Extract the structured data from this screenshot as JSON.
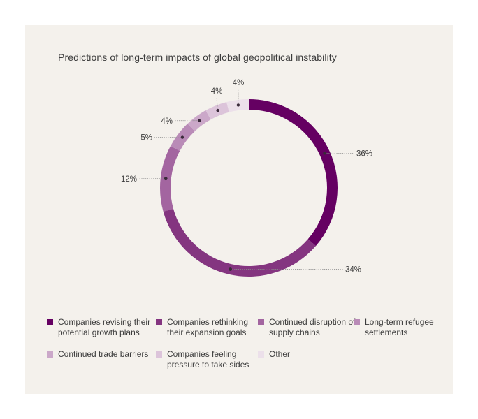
{
  "chart_data": {
    "type": "pie",
    "variant": "donut",
    "title": "Predictions of long-term impacts of global geopolitical instability",
    "slices": [
      {
        "label": "Companies revising their potential growth plans",
        "value": 36,
        "value_label": "36%",
        "color": "#650062"
      },
      {
        "label": "Companies rethinking their expansion goals",
        "value": 34,
        "value_label": "34%",
        "color": "#843580"
      },
      {
        "label": "Continued disruption of supply chains",
        "value": 12,
        "value_label": "12%",
        "color": "#a365a0"
      },
      {
        "label": "Long-term refugee settlements",
        "value": 5,
        "value_label": "5%",
        "color": "#b98bb7"
      },
      {
        "label": "Continued trade barriers",
        "value": 4,
        "value_label": "4%",
        "color": "#cba8c9"
      },
      {
        "label": "Companies feeling pressure to take sides",
        "value": 4,
        "value_label": "4%",
        "color": "#dcc4da"
      },
      {
        "label": "Other",
        "value": 4,
        "value_label": "4%",
        "color": "#ece0ea"
      }
    ],
    "legend_position": "bottom"
  }
}
